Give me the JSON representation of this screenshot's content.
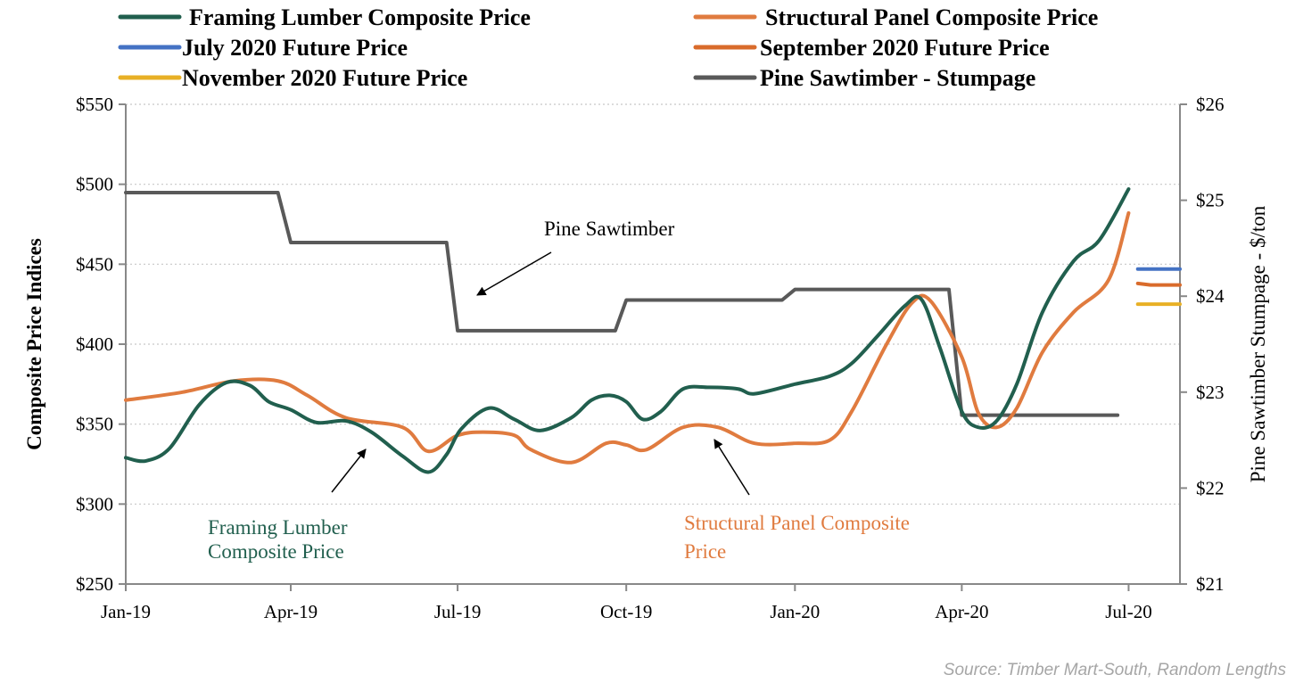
{
  "chart_data": {
    "type": "line",
    "xlim": [
      "2019-01-01",
      "2020-07-29"
    ],
    "ylim": [
      250,
      550
    ],
    "y2lim": [
      21,
      26
    ],
    "grid": true,
    "legend_placement": "top",
    "ylabel": "Composite Price Indices",
    "y2label": "Pine Sawtimber Stumpage - $/ton",
    "x_ticks": [
      {
        "date": "2019-01-01",
        "label": "Jan-19"
      },
      {
        "date": "2019-04-01",
        "label": "Apr-19"
      },
      {
        "date": "2019-07-01",
        "label": "Jul-19"
      },
      {
        "date": "2019-10-01",
        "label": "Oct-19"
      },
      {
        "date": "2020-01-01",
        "label": "Jan-20"
      },
      {
        "date": "2020-04-01",
        "label": "Apr-20"
      },
      {
        "date": "2020-07-01",
        "label": "Jul-20"
      }
    ],
    "y_ticks": [
      {
        "value": 250,
        "label": "$250"
      },
      {
        "value": 300,
        "label": "$300"
      },
      {
        "value": 350,
        "label": "$350"
      },
      {
        "value": 400,
        "label": "$400"
      },
      {
        "value": 450,
        "label": "$450"
      },
      {
        "value": 500,
        "label": "$500"
      },
      {
        "value": 550,
        "label": "$550"
      }
    ],
    "y2_ticks": [
      {
        "value": 21,
        "label": "$21"
      },
      {
        "value": 22,
        "label": "$22"
      },
      {
        "value": 23,
        "label": "$23"
      },
      {
        "value": 24,
        "label": "$24"
      },
      {
        "value": 25,
        "label": "$25"
      },
      {
        "value": 26,
        "label": "$26"
      }
    ],
    "series": [
      {
        "name": "Framing Lumber Composite Price",
        "color": "#215f4e",
        "axis": "left",
        "smooth": true,
        "points": [
          [
            "2019-01-01",
            329
          ],
          [
            "2019-01-12",
            327
          ],
          [
            "2019-01-25",
            335
          ],
          [
            "2019-02-10",
            362
          ],
          [
            "2019-02-25",
            376
          ],
          [
            "2019-03-10",
            374
          ],
          [
            "2019-03-20",
            364
          ],
          [
            "2019-04-01",
            359
          ],
          [
            "2019-04-15",
            351
          ],
          [
            "2019-05-01",
            352
          ],
          [
            "2019-05-15",
            345
          ],
          [
            "2019-06-01",
            330
          ],
          [
            "2019-06-15",
            320
          ],
          [
            "2019-06-25",
            331
          ],
          [
            "2019-07-03",
            347
          ],
          [
            "2019-07-18",
            360
          ],
          [
            "2019-08-01",
            353
          ],
          [
            "2019-08-15",
            346
          ],
          [
            "2019-09-01",
            354
          ],
          [
            "2019-09-12",
            365
          ],
          [
            "2019-09-22",
            368
          ],
          [
            "2019-10-01",
            364
          ],
          [
            "2019-10-10",
            353
          ],
          [
            "2019-10-20",
            358
          ],
          [
            "2019-11-01",
            372
          ],
          [
            "2019-11-15",
            373
          ],
          [
            "2019-12-01",
            372
          ],
          [
            "2019-12-10",
            369
          ],
          [
            "2020-01-01",
            375
          ],
          [
            "2020-01-20",
            380
          ],
          [
            "2020-02-01",
            388
          ],
          [
            "2020-02-15",
            405
          ],
          [
            "2020-03-01",
            424
          ],
          [
            "2020-03-10",
            428
          ],
          [
            "2020-03-20",
            398
          ],
          [
            "2020-04-01",
            358
          ],
          [
            "2020-04-10",
            348
          ],
          [
            "2020-04-20",
            352
          ],
          [
            "2020-05-01",
            375
          ],
          [
            "2020-05-15",
            420
          ],
          [
            "2020-06-01",
            452
          ],
          [
            "2020-06-15",
            465
          ],
          [
            "2020-07-01",
            497
          ]
        ]
      },
      {
        "name": "Structural Panel Composite Price",
        "color": "#e07b3f",
        "axis": "left",
        "smooth": true,
        "points": [
          [
            "2019-01-01",
            365
          ],
          [
            "2019-02-01",
            370
          ],
          [
            "2019-03-01",
            377
          ],
          [
            "2019-03-25",
            377
          ],
          [
            "2019-04-10",
            368
          ],
          [
            "2019-05-01",
            354
          ],
          [
            "2019-06-01",
            348
          ],
          [
            "2019-06-15",
            333
          ],
          [
            "2019-07-01",
            343
          ],
          [
            "2019-07-15",
            345
          ],
          [
            "2019-08-01",
            343
          ],
          [
            "2019-08-10",
            334
          ],
          [
            "2019-09-01",
            326
          ],
          [
            "2019-09-20",
            338
          ],
          [
            "2019-10-01",
            337
          ],
          [
            "2019-10-12",
            334
          ],
          [
            "2019-11-01",
            348
          ],
          [
            "2019-11-20",
            348
          ],
          [
            "2019-12-10",
            338
          ],
          [
            "2020-01-01",
            338
          ],
          [
            "2020-01-20",
            340
          ],
          [
            "2020-02-01",
            358
          ],
          [
            "2020-02-20",
            400
          ],
          [
            "2020-03-05",
            426
          ],
          [
            "2020-03-15",
            427
          ],
          [
            "2020-04-01",
            392
          ],
          [
            "2020-04-10",
            357
          ],
          [
            "2020-04-20",
            348
          ],
          [
            "2020-05-01",
            360
          ],
          [
            "2020-05-15",
            395
          ],
          [
            "2020-06-01",
            420
          ],
          [
            "2020-06-20",
            440
          ],
          [
            "2020-07-01",
            482
          ]
        ]
      },
      {
        "name": "July 2020 Future Price",
        "color": "#4472c4",
        "axis": "left",
        "smooth": false,
        "points": [
          [
            "2020-07-06",
            447
          ],
          [
            "2020-07-29",
            447
          ]
        ]
      },
      {
        "name": "September 2020 Future Price",
        "color": "#d96b2b",
        "axis": "left",
        "smooth": false,
        "points": [
          [
            "2020-07-06",
            438
          ],
          [
            "2020-07-13",
            437
          ],
          [
            "2020-07-29",
            437
          ]
        ]
      },
      {
        "name": "November 2020 Future Price",
        "color": "#e8b025",
        "axis": "left",
        "smooth": false,
        "points": [
          [
            "2020-07-06",
            425
          ],
          [
            "2020-07-29",
            425
          ]
        ]
      },
      {
        "name": "Pine Sawtimber - Stumpage",
        "color": "#595959",
        "axis": "right",
        "smooth": false,
        "points": [
          [
            "2019-01-01",
            25.08
          ],
          [
            "2019-03-25",
            25.08
          ],
          [
            "2019-04-01",
            24.56
          ],
          [
            "2019-06-25",
            24.56
          ],
          [
            "2019-07-01",
            23.64
          ],
          [
            "2019-09-25",
            23.64
          ],
          [
            "2019-10-01",
            23.96
          ],
          [
            "2019-12-25",
            23.96
          ],
          [
            "2020-01-01",
            24.07
          ],
          [
            "2020-03-25",
            24.07
          ],
          [
            "2020-04-01",
            22.76
          ],
          [
            "2020-06-25",
            22.76
          ]
        ]
      }
    ],
    "annotations": [
      {
        "text": "Pine Sawtimber",
        "color": "#000000"
      },
      {
        "lines": [
          "Framing Lumber",
          "Composite Price"
        ],
        "color": "#215f4e"
      },
      {
        "lines": [
          "Structural Panel Composite",
          "Price"
        ],
        "color": "#e07b3f"
      }
    ],
    "source": "Source: Timber Mart-South, Random Lengths"
  }
}
